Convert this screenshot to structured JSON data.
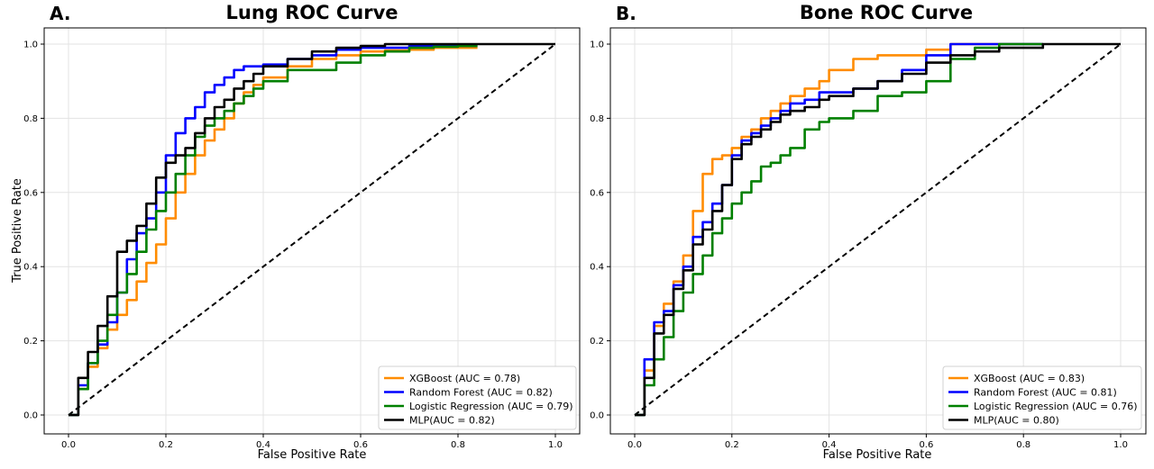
{
  "chart_data": [
    {
      "type": "line",
      "panel_label": "A.",
      "title": "Lung ROC Curve",
      "xlabel": "False Positive Rate",
      "ylabel": "True Positive Rate",
      "xlim": [
        0,
        1
      ],
      "ylim": [
        0,
        1
      ],
      "xticks": [
        "0.0",
        "0.2",
        "0.4",
        "0.6",
        "0.8",
        "1.0"
      ],
      "yticks": [
        "0.0",
        "0.2",
        "0.4",
        "0.6",
        "0.8",
        "1.0"
      ],
      "grid": true,
      "legend_position": "lower-right",
      "series": [
        {
          "name": "XGBoost (AUC = 0.78)",
          "color": "#ff8c00",
          "points": [
            [
              0,
              0
            ],
            [
              0.02,
              0.07
            ],
            [
              0.04,
              0.13
            ],
            [
              0.06,
              0.18
            ],
            [
              0.08,
              0.23
            ],
            [
              0.1,
              0.27
            ],
            [
              0.12,
              0.31
            ],
            [
              0.14,
              0.36
            ],
            [
              0.16,
              0.41
            ],
            [
              0.18,
              0.46
            ],
            [
              0.2,
              0.53
            ],
            [
              0.22,
              0.6
            ],
            [
              0.24,
              0.65
            ],
            [
              0.26,
              0.7
            ],
            [
              0.28,
              0.74
            ],
            [
              0.3,
              0.77
            ],
            [
              0.32,
              0.8
            ],
            [
              0.34,
              0.84
            ],
            [
              0.36,
              0.87
            ],
            [
              0.38,
              0.89
            ],
            [
              0.4,
              0.91
            ],
            [
              0.45,
              0.94
            ],
            [
              0.5,
              0.96
            ],
            [
              0.55,
              0.97
            ],
            [
              0.6,
              0.98
            ],
            [
              0.65,
              0.983
            ],
            [
              0.7,
              0.985
            ],
            [
              0.75,
              0.99
            ],
            [
              0.8,
              0.99
            ],
            [
              0.84,
              0.99
            ]
          ]
        },
        {
          "name": "Random Forest (AUC = 0.82)",
          "color": "#0000ff",
          "points": [
            [
              0,
              0
            ],
            [
              0.02,
              0.08
            ],
            [
              0.04,
              0.14
            ],
            [
              0.06,
              0.19
            ],
            [
              0.08,
              0.25
            ],
            [
              0.1,
              0.33
            ],
            [
              0.12,
              0.42
            ],
            [
              0.14,
              0.49
            ],
            [
              0.16,
              0.53
            ],
            [
              0.18,
              0.6
            ],
            [
              0.2,
              0.7
            ],
            [
              0.22,
              0.76
            ],
            [
              0.24,
              0.8
            ],
            [
              0.26,
              0.83
            ],
            [
              0.28,
              0.87
            ],
            [
              0.3,
              0.89
            ],
            [
              0.32,
              0.91
            ],
            [
              0.34,
              0.93
            ],
            [
              0.36,
              0.94
            ],
            [
              0.4,
              0.945
            ],
            [
              0.45,
              0.96
            ],
            [
              0.5,
              0.97
            ],
            [
              0.55,
              0.985
            ],
            [
              0.6,
              0.99
            ],
            [
              0.65,
              0.99
            ],
            [
              0.7,
              0.995
            ],
            [
              0.75,
              0.995
            ],
            [
              0.8,
              0.995
            ],
            [
              0.84,
              0.995
            ]
          ]
        },
        {
          "name": "Logistic Regression (AUC = 0.79)",
          "color": "#008000",
          "points": [
            [
              0,
              0
            ],
            [
              0.02,
              0.07
            ],
            [
              0.04,
              0.14
            ],
            [
              0.06,
              0.2
            ],
            [
              0.08,
              0.27
            ],
            [
              0.1,
              0.33
            ],
            [
              0.12,
              0.38
            ],
            [
              0.14,
              0.44
            ],
            [
              0.16,
              0.5
            ],
            [
              0.18,
              0.55
            ],
            [
              0.2,
              0.6
            ],
            [
              0.22,
              0.65
            ],
            [
              0.24,
              0.7
            ],
            [
              0.26,
              0.75
            ],
            [
              0.28,
              0.78
            ],
            [
              0.3,
              0.8
            ],
            [
              0.32,
              0.82
            ],
            [
              0.34,
              0.84
            ],
            [
              0.36,
              0.86
            ],
            [
              0.38,
              0.88
            ],
            [
              0.4,
              0.9
            ],
            [
              0.45,
              0.93
            ],
            [
              0.5,
              0.93
            ],
            [
              0.55,
              0.95
            ],
            [
              0.6,
              0.97
            ],
            [
              0.65,
              0.98
            ],
            [
              0.7,
              0.99
            ],
            [
              0.75,
              0.993
            ],
            [
              0.8,
              0.995
            ],
            [
              0.84,
              0.995
            ]
          ]
        },
        {
          "name": "MLP(AUC = 0.82)",
          "color": "#000000",
          "points": [
            [
              0,
              0
            ],
            [
              0.02,
              0.1
            ],
            [
              0.04,
              0.17
            ],
            [
              0.06,
              0.24
            ],
            [
              0.08,
              0.32
            ],
            [
              0.1,
              0.44
            ],
            [
              0.12,
              0.47
            ],
            [
              0.14,
              0.51
            ],
            [
              0.16,
              0.57
            ],
            [
              0.18,
              0.64
            ],
            [
              0.2,
              0.68
            ],
            [
              0.22,
              0.7
            ],
            [
              0.24,
              0.72
            ],
            [
              0.26,
              0.76
            ],
            [
              0.28,
              0.8
            ],
            [
              0.3,
              0.83
            ],
            [
              0.32,
              0.85
            ],
            [
              0.34,
              0.88
            ],
            [
              0.36,
              0.9
            ],
            [
              0.38,
              0.92
            ],
            [
              0.4,
              0.94
            ],
            [
              0.45,
              0.96
            ],
            [
              0.5,
              0.98
            ],
            [
              0.55,
              0.99
            ],
            [
              0.6,
              0.995
            ],
            [
              0.65,
              1.0
            ],
            [
              0.7,
              1.0
            ],
            [
              0.8,
              1.0
            ],
            [
              0.9,
              1.0
            ],
            [
              1.0,
              1.0
            ]
          ]
        },
        {
          "name": "",
          "color": "#000000",
          "dashed": true,
          "points": [
            [
              0,
              0
            ],
            [
              1,
              1
            ]
          ]
        }
      ]
    },
    {
      "type": "line",
      "panel_label": "B.",
      "title": "Bone ROC Curve",
      "xlabel": "False Positive Rate",
      "ylabel": "",
      "xlim": [
        0,
        1
      ],
      "ylim": [
        0,
        1
      ],
      "xticks": [
        "0.0",
        "0.2",
        "0.4",
        "0.6",
        "0.8",
        "1.0"
      ],
      "yticks": [
        "0.0",
        "0.2",
        "0.4",
        "0.6",
        "0.8",
        "1.0"
      ],
      "grid": true,
      "legend_position": "lower-right",
      "series": [
        {
          "name": "XGBoost (AUC = 0.83)",
          "color": "#ff8c00",
          "points": [
            [
              0,
              0
            ],
            [
              0.02,
              0.12
            ],
            [
              0.04,
              0.24
            ],
            [
              0.06,
              0.3
            ],
            [
              0.08,
              0.36
            ],
            [
              0.1,
              0.43
            ],
            [
              0.12,
              0.55
            ],
            [
              0.14,
              0.65
            ],
            [
              0.16,
              0.69
            ],
            [
              0.18,
              0.7
            ],
            [
              0.2,
              0.72
            ],
            [
              0.22,
              0.75
            ],
            [
              0.24,
              0.77
            ],
            [
              0.26,
              0.8
            ],
            [
              0.28,
              0.82
            ],
            [
              0.3,
              0.84
            ],
            [
              0.32,
              0.86
            ],
            [
              0.35,
              0.88
            ],
            [
              0.38,
              0.9
            ],
            [
              0.4,
              0.93
            ],
            [
              0.45,
              0.96
            ],
            [
              0.5,
              0.97
            ],
            [
              0.55,
              0.97
            ],
            [
              0.6,
              0.985
            ],
            [
              0.65,
              1.0
            ],
            [
              0.7,
              1.0
            ],
            [
              0.8,
              1.0
            ],
            [
              0.84,
              1.0
            ]
          ]
        },
        {
          "name": "Random Forest (AUC = 0.81)",
          "color": "#0000ff",
          "points": [
            [
              0,
              0
            ],
            [
              0.02,
              0.15
            ],
            [
              0.04,
              0.25
            ],
            [
              0.06,
              0.28
            ],
            [
              0.08,
              0.35
            ],
            [
              0.1,
              0.4
            ],
            [
              0.12,
              0.48
            ],
            [
              0.14,
              0.52
            ],
            [
              0.16,
              0.57
            ],
            [
              0.18,
              0.62
            ],
            [
              0.2,
              0.7
            ],
            [
              0.22,
              0.74
            ],
            [
              0.24,
              0.76
            ],
            [
              0.26,
              0.78
            ],
            [
              0.28,
              0.8
            ],
            [
              0.3,
              0.82
            ],
            [
              0.32,
              0.84
            ],
            [
              0.35,
              0.85
            ],
            [
              0.38,
              0.87
            ],
            [
              0.4,
              0.87
            ],
            [
              0.45,
              0.88
            ],
            [
              0.5,
              0.9
            ],
            [
              0.55,
              0.93
            ],
            [
              0.6,
              0.97
            ],
            [
              0.65,
              1.0
            ],
            [
              0.7,
              1.0
            ],
            [
              0.8,
              1.0
            ],
            [
              0.84,
              1.0
            ]
          ]
        },
        {
          "name": "Logistic Regression (AUC = 0.76)",
          "color": "#008000",
          "points": [
            [
              0,
              0
            ],
            [
              0.02,
              0.08
            ],
            [
              0.04,
              0.15
            ],
            [
              0.06,
              0.21
            ],
            [
              0.08,
              0.28
            ],
            [
              0.1,
              0.33
            ],
            [
              0.12,
              0.38
            ],
            [
              0.14,
              0.43
            ],
            [
              0.16,
              0.49
            ],
            [
              0.18,
              0.53
            ],
            [
              0.2,
              0.57
            ],
            [
              0.22,
              0.6
            ],
            [
              0.24,
              0.63
            ],
            [
              0.26,
              0.67
            ],
            [
              0.28,
              0.68
            ],
            [
              0.3,
              0.7
            ],
            [
              0.32,
              0.72
            ],
            [
              0.35,
              0.77
            ],
            [
              0.38,
              0.79
            ],
            [
              0.4,
              0.8
            ],
            [
              0.45,
              0.82
            ],
            [
              0.5,
              0.86
            ],
            [
              0.55,
              0.87
            ],
            [
              0.6,
              0.9
            ],
            [
              0.65,
              0.96
            ],
            [
              0.7,
              0.99
            ],
            [
              0.75,
              1.0
            ],
            [
              0.8,
              1.0
            ],
            [
              0.84,
              1.0
            ]
          ]
        },
        {
          "name": "MLP(AUC = 0.80)",
          "color": "#000000",
          "points": [
            [
              0,
              0
            ],
            [
              0.02,
              0.1
            ],
            [
              0.04,
              0.22
            ],
            [
              0.06,
              0.27
            ],
            [
              0.08,
              0.34
            ],
            [
              0.1,
              0.39
            ],
            [
              0.12,
              0.46
            ],
            [
              0.14,
              0.5
            ],
            [
              0.16,
              0.55
            ],
            [
              0.18,
              0.62
            ],
            [
              0.2,
              0.69
            ],
            [
              0.22,
              0.73
            ],
            [
              0.24,
              0.75
            ],
            [
              0.26,
              0.77
            ],
            [
              0.28,
              0.79
            ],
            [
              0.3,
              0.81
            ],
            [
              0.32,
              0.82
            ],
            [
              0.35,
              0.83
            ],
            [
              0.38,
              0.85
            ],
            [
              0.4,
              0.86
            ],
            [
              0.45,
              0.88
            ],
            [
              0.5,
              0.9
            ],
            [
              0.55,
              0.92
            ],
            [
              0.6,
              0.95
            ],
            [
              0.65,
              0.97
            ],
            [
              0.7,
              0.98
            ],
            [
              0.75,
              0.99
            ],
            [
              0.8,
              0.99
            ],
            [
              0.84,
              1.0
            ],
            [
              1.0,
              1.0
            ]
          ]
        },
        {
          "name": "",
          "color": "#000000",
          "dashed": true,
          "points": [
            [
              0,
              0
            ],
            [
              1,
              1
            ]
          ]
        }
      ]
    }
  ]
}
